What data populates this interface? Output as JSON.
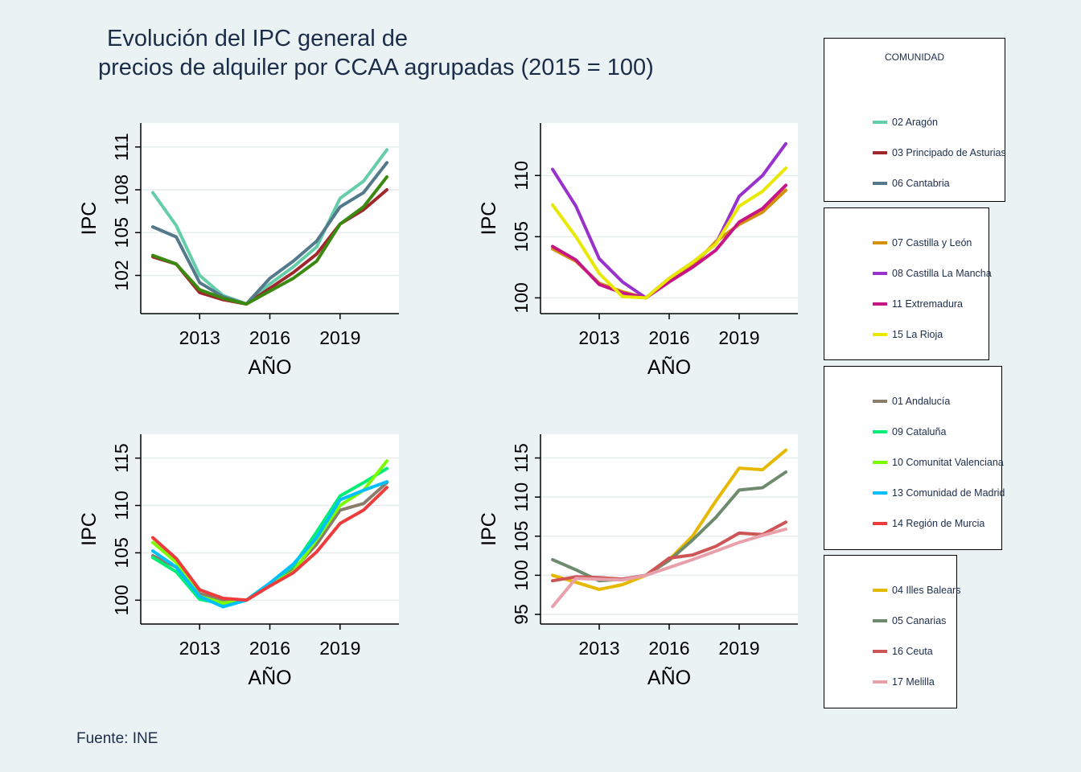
{
  "title_lines": [
    "Evolución del IPC general de",
    "precios de alquiler por CCAA agrupadas (2015 = 100)"
  ],
  "source": "Fuente: INE",
  "legend_title": "COMUNIDAD",
  "chart_data": [
    {
      "type": "line",
      "xlabel": "AÑO",
      "ylabel": "IPC",
      "xlim": [
        2011,
        2021
      ],
      "xticks": [
        2013,
        2016,
        2019
      ],
      "ylim": [
        100,
        112
      ],
      "yticks": [
        102,
        105,
        108,
        111
      ],
      "grid": true,
      "x": [
        2011,
        2012,
        2013,
        2014,
        2015,
        2016,
        2017,
        2018,
        2019,
        2020,
        2021
      ],
      "series": [
        {
          "name": "02 Aragón",
          "color": "#66cdaa",
          "values": [
            107.8,
            105.5,
            102.0,
            100.6,
            100.0,
            101.4,
            102.6,
            104.0,
            107.4,
            108.6,
            110.8
          ]
        },
        {
          "name": "03 Principado de Asturias",
          "color": "#a0282d",
          "values": [
            103.3,
            102.8,
            100.8,
            100.3,
            100.0,
            101.1,
            102.2,
            103.5,
            105.6,
            106.6,
            108.0
          ]
        },
        {
          "name": "06 Cantabria",
          "color": "#54798a",
          "values": [
            105.4,
            104.7,
            101.5,
            100.5,
            100.0,
            101.8,
            103.0,
            104.4,
            106.8,
            107.8,
            109.9
          ]
        },
        {
          "name": "12 Galicia",
          "color": "#3a8a10",
          "values": [
            103.4,
            102.8,
            101.0,
            100.4,
            100.0,
            100.9,
            101.8,
            103.0,
            105.6,
            106.8,
            108.9
          ]
        }
      ],
      "legend": "right"
    },
    {
      "type": "line",
      "xlabel": "AÑO",
      "ylabel": "IPC",
      "xlim": [
        2011,
        2021
      ],
      "xticks": [
        2013,
        2016,
        2019
      ],
      "ylim": [
        99.5,
        113.5
      ],
      "yticks": [
        100,
        105,
        110
      ],
      "grid": true,
      "x": [
        2011,
        2012,
        2013,
        2014,
        2015,
        2016,
        2017,
        2018,
        2019,
        2020,
        2021
      ],
      "series": [
        {
          "name": "07 Castilla y León",
          "color": "#d4900a",
          "values": [
            104.0,
            103.0,
            101.2,
            100.5,
            100.0,
            101.5,
            102.6,
            104.6,
            106.0,
            107.0,
            108.8
          ]
        },
        {
          "name": "08 Castilla La Mancha",
          "color": "#9932cc",
          "values": [
            110.5,
            107.5,
            103.2,
            101.3,
            100.0,
            101.6,
            102.9,
            104.4,
            108.3,
            110.0,
            112.6
          ]
        },
        {
          "name": "11 Extremadura",
          "color": "#c71585",
          "values": [
            104.2,
            103.1,
            101.1,
            100.4,
            100.0,
            101.3,
            102.5,
            103.9,
            106.2,
            107.3,
            109.2
          ]
        },
        {
          "name": "15 La Rioja",
          "color": "#e8e800",
          "values": [
            107.6,
            105.0,
            102.0,
            100.1,
            100.0,
            101.6,
            102.9,
            104.4,
            107.5,
            108.7,
            110.6
          ]
        }
      ],
      "legend": "right"
    },
    {
      "type": "line",
      "xlabel": "AÑO",
      "ylabel": "IPC",
      "xlim": [
        2011,
        2021
      ],
      "xticks": [
        2013,
        2016,
        2019
      ],
      "ylim": [
        98.5,
        116.5
      ],
      "yticks": [
        100,
        105,
        110,
        115
      ],
      "grid": true,
      "x": [
        2011,
        2012,
        2013,
        2014,
        2015,
        2016,
        2017,
        2018,
        2019,
        2020,
        2021
      ],
      "series": [
        {
          "name": "01 Andalucía",
          "color": "#8b7d6b",
          "values": [
            104.7,
            103.5,
            100.7,
            100.0,
            100.0,
            101.5,
            103.2,
            105.9,
            109.5,
            110.2,
            112.4
          ]
        },
        {
          "name": "09 Cataluña",
          "color": "#00ee76",
          "values": [
            104.5,
            103.0,
            100.1,
            99.6,
            100.0,
            101.8,
            103.6,
            107.2,
            111.0,
            112.4,
            113.9
          ]
        },
        {
          "name": "10 Comunitat Valenciana",
          "color": "#7cfc00",
          "values": [
            106.1,
            104.0,
            100.4,
            99.7,
            100.0,
            101.6,
            103.0,
            106.4,
            110.0,
            111.6,
            114.7
          ]
        },
        {
          "name": "13 Comunidad de Madrid",
          "color": "#00bfff",
          "values": [
            105.2,
            103.5,
            100.4,
            99.3,
            100.0,
            101.8,
            103.8,
            106.6,
            110.6,
            111.6,
            112.5
          ]
        },
        {
          "name": "14 Región de Murcia",
          "color": "#ee3b3b",
          "values": [
            106.6,
            104.4,
            101.1,
            100.2,
            100.0,
            101.5,
            102.9,
            105.1,
            108.1,
            109.5,
            111.9
          ]
        }
      ],
      "legend": "right"
    },
    {
      "type": "line",
      "xlabel": "AÑO",
      "ylabel": "IPC",
      "xlim": [
        2011,
        2021
      ],
      "xticks": [
        2013,
        2016,
        2019
      ],
      "ylim": [
        95,
        116.8
      ],
      "yticks": [
        95,
        100,
        105,
        110,
        115
      ],
      "yticklabels": [
        "95",
        "100",
        "105",
        "110",
        "115"
      ],
      "grid": true,
      "x": [
        2011,
        2012,
        2013,
        2014,
        2015,
        2016,
        2017,
        2018,
        2019,
        2020,
        2021
      ],
      "series": [
        {
          "name": "04 Illes Balears",
          "color": "#e6b800",
          "values": [
            100.0,
            99.1,
            98.2,
            98.8,
            100.0,
            102.0,
            105.0,
            109.5,
            113.7,
            113.5,
            116.0
          ]
        },
        {
          "name": "05 Canarias",
          "color": "#6e8b6e",
          "values": [
            102.0,
            100.7,
            99.3,
            99.5,
            100.0,
            101.9,
            104.5,
            107.4,
            110.9,
            111.2,
            113.2
          ]
        },
        {
          "name": "16 Ceuta",
          "color": "#cd5555",
          "values": [
            99.3,
            99.8,
            99.7,
            99.5,
            100.0,
            102.2,
            102.6,
            103.7,
            105.4,
            105.2,
            106.8
          ]
        },
        {
          "name": "17 Melilla",
          "color": "#e8a0aa",
          "values": [
            96.0,
            99.6,
            99.5,
            99.4,
            100.0,
            101.0,
            102.0,
            103.1,
            104.2,
            105.1,
            105.9
          ]
        }
      ],
      "legend": "right"
    }
  ]
}
